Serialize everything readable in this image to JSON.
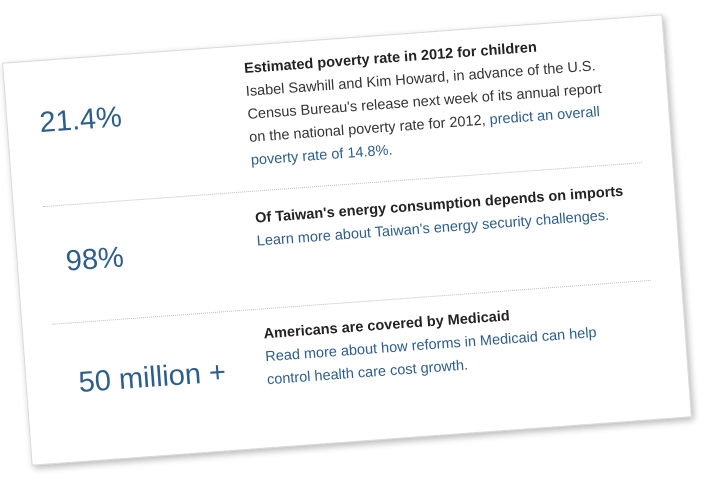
{
  "items": [
    {
      "stat": "21.4%",
      "heading": "Estimated poverty rate in 2012 for children",
      "body": "Isabel Sawhill and Kim Howard, in advance of the U.S. Census Bureau's release next week of its annual report on the national poverty rate for 2012, ",
      "link": "predict an overall poverty rate of 14.8%."
    },
    {
      "stat": "98%",
      "heading": "Of Taiwan's energy consumption depends on imports",
      "body": "",
      "link": "Learn more about Taiwan's energy security challenges."
    },
    {
      "stat": "50 million +",
      "heading": "Americans are covered by Medicaid",
      "body": "",
      "link": "Read more about how reforms in Medicaid can help control health care cost growth."
    }
  ],
  "colors": {
    "accent": "#2d5d8b",
    "text": "#333333",
    "divider": "#bdbdbd"
  }
}
